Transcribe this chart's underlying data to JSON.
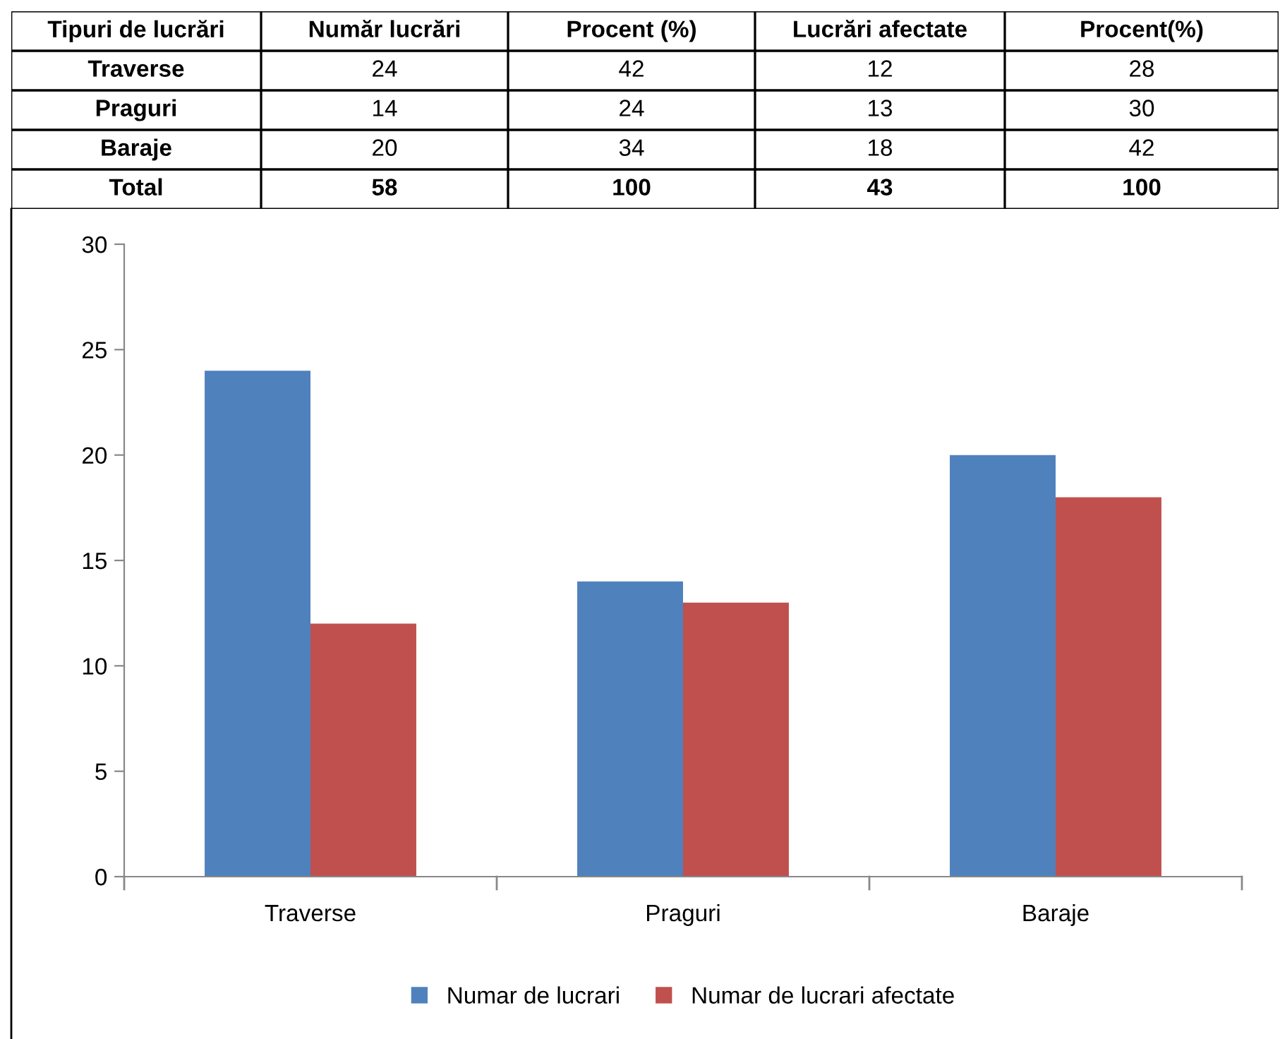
{
  "chart_data": [
    {
      "type": "other",
      "categories": [
        "Tipuri de lucrări",
        "Număr lucrări",
        "Procent (%)",
        "Lucrări afectate",
        "Procent(%)"
      ],
      "cell_labels": [
        [
          "Traverse",
          "24",
          "42",
          "12",
          "28"
        ],
        [
          "Praguri",
          "14",
          "24",
          "13",
          "30"
        ],
        [
          "Baraje",
          "20",
          "34",
          "18",
          "42"
        ],
        [
          "Total",
          "58",
          "100",
          "43",
          "100"
        ]
      ]
    },
    {
      "type": "bar",
      "categories": [
        "Traverse",
        "Praguri",
        "Baraje"
      ],
      "series": [
        {
          "name": "Numar de lucrari",
          "color": "#4f81bd",
          "values": [
            24,
            14,
            20
          ]
        },
        {
          "name": "Numar de lucrari afectate",
          "color": "#c0504d",
          "values": [
            12,
            13,
            18
          ]
        }
      ],
      "ylim": [
        0,
        30
      ],
      "yticks": [
        0,
        5,
        10,
        15,
        20,
        25,
        30
      ],
      "legend": "bottom"
    }
  ]
}
